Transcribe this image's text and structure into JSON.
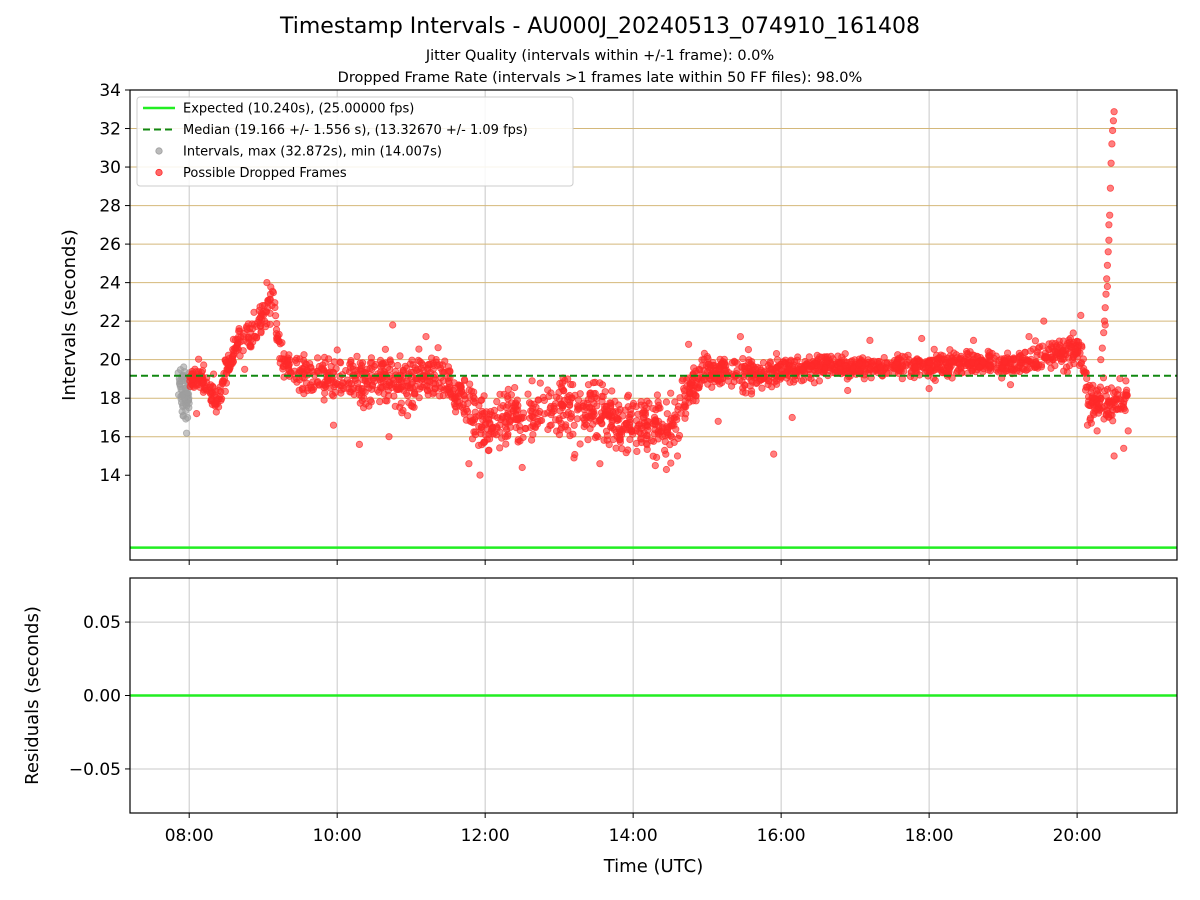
{
  "chart_data": {
    "title": "Timestamp Intervals - AU000J_20240513_074910_161408",
    "subtitle_1": "Jitter Quality (intervals within +/-1 frame): 0.0%",
    "subtitle_2": "Dropped Frame Rate (intervals >1 frames late within 50 FF files): 98.0%",
    "x_label": "Time (UTC)",
    "x_ticks": [
      "08:00",
      "10:00",
      "12:00",
      "14:00",
      "16:00",
      "18:00",
      "20:00"
    ],
    "x_tick_hours": [
      8,
      10,
      12,
      14,
      16,
      18,
      20
    ],
    "xlim_hours": [
      7.2,
      21.35
    ],
    "top": {
      "type": "scatter",
      "y_label": "Intervals (seconds)",
      "ylim": [
        9.6,
        34
      ],
      "y_ticks": [
        "14",
        "16",
        "18",
        "20",
        "22",
        "24",
        "26",
        "28",
        "30",
        "32",
        "34"
      ],
      "y_tick_values": [
        14,
        16,
        18,
        20,
        22,
        24,
        26,
        28,
        30,
        32,
        34
      ],
      "hgrid_values": [
        16,
        18,
        20,
        22,
        24,
        26,
        28,
        30,
        32
      ],
      "hgrid_color": "#d4b87a",
      "expected_value": 10.24,
      "median_value": 19.166,
      "legend_position": "upper left",
      "legend": [
        {
          "label": "Expected (10.240s), (25.00000 fps)",
          "kind": "line",
          "color": "#22ee22"
        },
        {
          "label": "Median (19.166 +/- 1.556 s), (13.32670 +/- 1.09 fps)",
          "kind": "dashed",
          "color": "#118811"
        },
        {
          "label": "Intervals, max (32.872s), min (14.007s)",
          "kind": "dot",
          "color": "#9e9e9e"
        },
        {
          "label": "Possible Dropped Frames",
          "kind": "dot",
          "color": "#ff2a2a"
        }
      ],
      "series": [
        {
          "name": "Intervals, max (32.872s), min (14.007s)",
          "color": "#9e9e9e",
          "x_range": [
            7.85,
            8.0
          ],
          "band": [
            [
              7.85,
              19.0,
              0.5
            ],
            [
              7.92,
              18.3,
              1.2
            ],
            [
              7.97,
              17.8,
              1.2
            ],
            [
              8.0,
              18.2,
              0.8
            ]
          ]
        },
        {
          "name": "Possible Dropped Frames",
          "color": "#ff2a2a",
          "x_range": [
            8.0,
            20.68
          ],
          "band": [
            [
              8.0,
              18.9,
              0.5
            ],
            [
              8.15,
              19.3,
              0.6
            ],
            [
              8.25,
              18.2,
              0.7
            ],
            [
              8.4,
              17.9,
              0.7
            ],
            [
              8.5,
              19.3,
              0.7
            ],
            [
              8.65,
              20.8,
              0.7
            ],
            [
              8.85,
              21.4,
              0.6
            ],
            [
              9.05,
              22.5,
              0.8
            ],
            [
              9.12,
              23.2,
              0.8
            ],
            [
              9.22,
              20.6,
              0.7
            ],
            [
              9.4,
              19.4,
              0.8
            ],
            [
              10.0,
              19.0,
              1.0
            ],
            [
              10.5,
              19.0,
              1.1
            ],
            [
              11.0,
              18.8,
              1.1
            ],
            [
              11.3,
              19.3,
              0.9
            ],
            [
              11.6,
              18.3,
              1.1
            ],
            [
              12.0,
              16.6,
              1.2
            ],
            [
              12.4,
              17.0,
              1.2
            ],
            [
              12.9,
              17.5,
              1.3
            ],
            [
              13.4,
              17.4,
              1.3
            ],
            [
              13.8,
              16.8,
              1.3
            ],
            [
              14.2,
              16.6,
              1.2
            ],
            [
              14.5,
              16.4,
              1.2
            ],
            [
              14.72,
              18.3,
              1.0
            ],
            [
              15.0,
              19.4,
              0.7
            ],
            [
              15.5,
              19.3,
              0.8
            ],
            [
              16.0,
              19.4,
              0.6
            ],
            [
              16.5,
              19.7,
              0.5
            ],
            [
              17.0,
              19.6,
              0.5
            ],
            [
              17.5,
              19.7,
              0.5
            ],
            [
              18.0,
              19.7,
              0.5
            ],
            [
              18.5,
              19.8,
              0.5
            ],
            [
              19.0,
              19.8,
              0.5
            ],
            [
              19.5,
              20.0,
              0.6
            ],
            [
              19.9,
              20.6,
              0.7
            ],
            [
              20.05,
              20.4,
              0.7
            ],
            [
              20.15,
              17.9,
              0.9
            ],
            [
              20.22,
              17.5,
              0.9
            ],
            [
              20.3,
              18.0,
              0.7
            ],
            [
              20.42,
              17.6,
              0.8
            ],
            [
              20.52,
              17.9,
              0.9
            ],
            [
              20.68,
              18.2,
              0.9
            ]
          ],
          "extra_points": [
            [
              20.32,
              20.0
            ],
            [
              20.34,
              20.6
            ],
            [
              20.36,
              21.4
            ],
            [
              20.37,
              22.0
            ],
            [
              20.38,
              22.7
            ],
            [
              20.39,
              23.4
            ],
            [
              20.4,
              24.2
            ],
            [
              20.41,
              24.9
            ],
            [
              20.42,
              25.6
            ],
            [
              20.43,
              27.0
            ],
            [
              20.44,
              27.5
            ],
            [
              20.45,
              28.9
            ],
            [
              20.46,
              30.2
            ],
            [
              20.47,
              31.2
            ],
            [
              20.48,
              31.9
            ],
            [
              20.49,
              32.4
            ],
            [
              20.5,
              32.872
            ],
            [
              20.43,
              26.2
            ],
            [
              20.41,
              23.8
            ],
            [
              20.38,
              21.8
            ],
            [
              20.5,
              15.0
            ],
            [
              20.63,
              15.4
            ],
            [
              20.69,
              16.3
            ],
            [
              20.14,
              16.6
            ],
            [
              20.27,
              16.3
            ],
            [
              11.93,
              14.007
            ],
            [
              12.5,
              14.4
            ],
            [
              14.3,
              14.5
            ],
            [
              14.45,
              14.3
            ],
            [
              13.55,
              14.6
            ],
            [
              10.3,
              15.6
            ],
            [
              10.7,
              16.0
            ],
            [
              15.15,
              16.8
            ],
            [
              15.9,
              15.1
            ],
            [
              16.15,
              17.0
            ],
            [
              10.75,
              21.8
            ],
            [
              9.05,
              24.0
            ],
            [
              8.75,
              19.5
            ],
            [
              11.2,
              21.2
            ],
            [
              17.2,
              21.0
            ],
            [
              19.55,
              22.0
            ],
            [
              15.45,
              21.2
            ],
            [
              16.9,
              18.4
            ],
            [
              18.0,
              18.5
            ],
            [
              14.75,
              20.8
            ],
            [
              10.0,
              20.5
            ],
            [
              12.2,
              18.2
            ],
            [
              8.1,
              17.2
            ],
            [
              19.35,
              21.2
            ],
            [
              17.9,
              21.1
            ],
            [
              20.05,
              22.3
            ],
            [
              19.1,
              18.7
            ],
            [
              16.45,
              18.8
            ],
            [
              18.6,
              21.0
            ],
            [
              9.95,
              16.6
            ],
            [
              13.2,
              14.9
            ],
            [
              14.6,
              15.0
            ],
            [
              12.05,
              15.3
            ],
            [
              11.78,
              14.6
            ]
          ]
        }
      ]
    },
    "bottom": {
      "type": "line",
      "y_label": "Residuals (seconds)",
      "ylim": [
        -0.08,
        0.08
      ],
      "y_ticks": [
        "0.05",
        "0.00",
        "−0.05"
      ],
      "y_tick_values": [
        0.05,
        0.0,
        -0.05
      ],
      "series": [
        {
          "name": "Residuals",
          "color": "#22ee22",
          "x": [
            7.2,
            21.35
          ],
          "values": [
            0.0,
            0.0
          ]
        }
      ]
    }
  }
}
